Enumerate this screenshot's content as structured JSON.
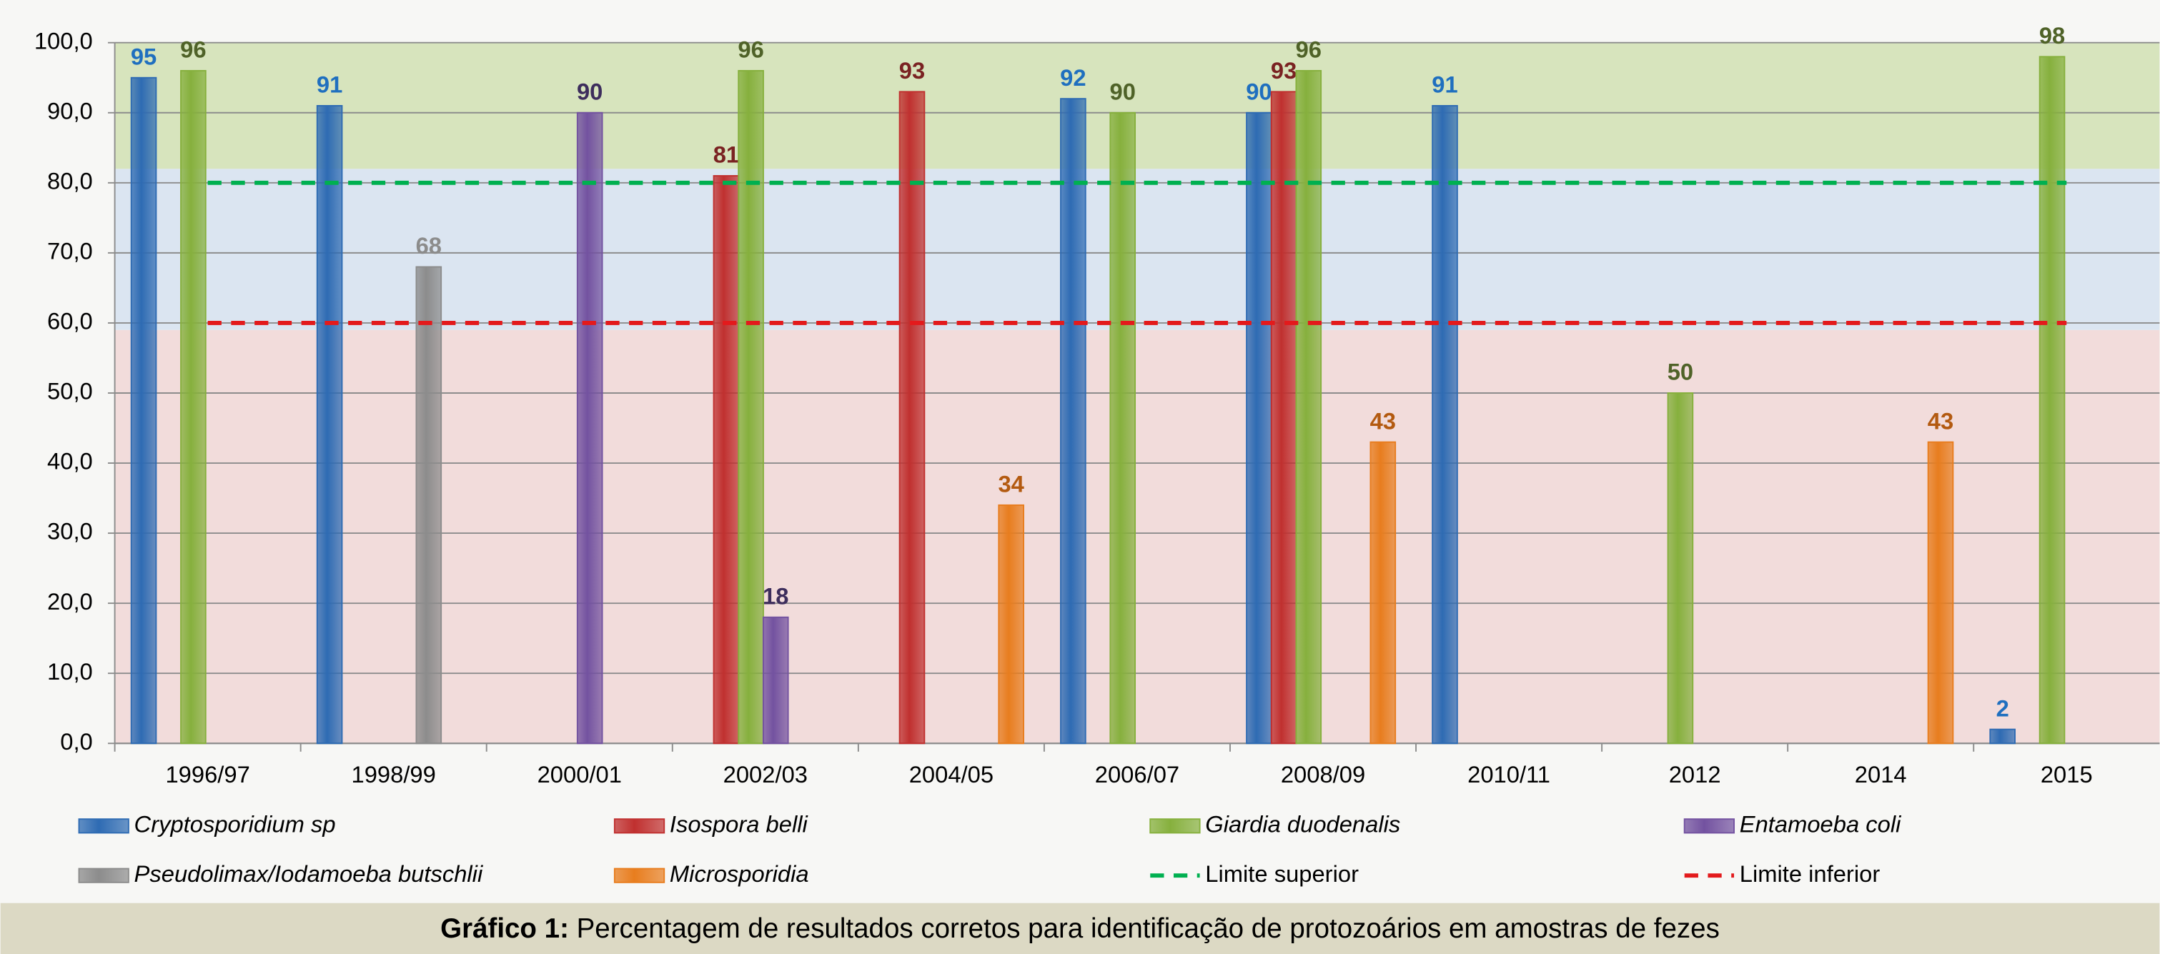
{
  "chart_data": {
    "type": "bar",
    "categories": [
      "1996/97",
      "1998/99",
      "2000/01",
      "2002/03",
      "2004/05",
      "2006/07",
      "2008/09",
      "2010/11",
      "2012",
      "2014",
      "2015"
    ],
    "series": [
      {
        "name": "Cryptosporidium sp",
        "color": "#2e6bb3",
        "label_color": "#1f6fbf",
        "values": [
          95,
          91,
          null,
          null,
          null,
          92,
          90,
          91,
          null,
          null,
          2
        ]
      },
      {
        "name": "Isospora belli",
        "color": "#c0302f",
        "label_color": "#7a2222",
        "values": [
          null,
          null,
          null,
          81,
          93,
          null,
          93,
          null,
          null,
          null,
          null
        ]
      },
      {
        "name": "Giardia duodenalis",
        "color": "#86b03d",
        "label_color": "#4f6228",
        "values": [
          96,
          null,
          null,
          96,
          null,
          90,
          96,
          null,
          50,
          null,
          98
        ]
      },
      {
        "name": "Entamoeba coli",
        "color": "#7352a0",
        "label_color": "#3d2d5c",
        "values": [
          null,
          null,
          90,
          18,
          null,
          null,
          null,
          null,
          null,
          null,
          null
        ]
      },
      {
        "name": "Pseudolimax/Iodamoeba butschlii",
        "color": "#8c8c8c",
        "label_color": "#8c8c8c",
        "values": [
          null,
          68,
          null,
          null,
          null,
          null,
          null,
          null,
          null,
          null,
          null
        ]
      },
      {
        "name": "Microsporidia",
        "color": "#e87d1e",
        "label_color": "#b35a10",
        "values": [
          null,
          null,
          null,
          null,
          34,
          null,
          43,
          null,
          null,
          43,
          null
        ]
      }
    ],
    "lines": [
      {
        "name": "Limite superior",
        "color": "#00b050",
        "value": 80
      },
      {
        "name": "Limite inferior",
        "color": "#e31a1c",
        "value": 60
      }
    ],
    "bands": [
      {
        "from": 0,
        "to": 59,
        "color": "#f2dcdb"
      },
      {
        "from": 59,
        "to": 82,
        "color": "#dbe5f1"
      },
      {
        "from": 82,
        "to": 100,
        "color": "#d7e4bd"
      }
    ],
    "ylim": [
      0,
      100
    ],
    "yticks": [
      {
        "value": 0,
        "label": "0,0"
      },
      {
        "value": 10,
        "label": "10,0"
      },
      {
        "value": 20,
        "label": "20,0"
      },
      {
        "value": 30,
        "label": "30,0"
      },
      {
        "value": 40,
        "label": "40,0"
      },
      {
        "value": 50,
        "label": "50,0"
      },
      {
        "value": 60,
        "label": "60,0"
      },
      {
        "value": 70,
        "label": "70,0"
      },
      {
        "value": 80,
        "label": "80,0"
      },
      {
        "value": 90,
        "label": "90,0"
      },
      {
        "value": 100,
        "label": "100,0"
      }
    ],
    "grid": true,
    "legend": "bottom",
    "caption": {
      "label": "Gráfico 1:",
      "text": "Percentagem de resultados corretos para identificação de protozoários em amostras de fezes"
    }
  }
}
